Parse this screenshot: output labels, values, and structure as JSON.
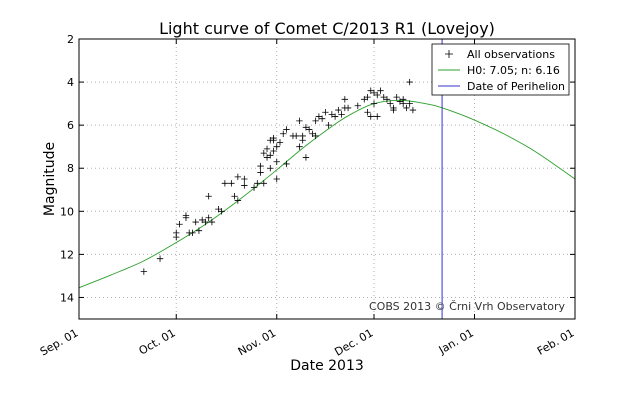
{
  "chart_data": {
    "type": "scatter",
    "title": "Light curve of Comet C/2013 R1 (Lovejoy)",
    "xlabel": "Date 2013",
    "ylabel": "Magnitude",
    "x_ticks": [
      "Sep. 01",
      "Oct. 01",
      "Nov. 01",
      "Dec. 01",
      "Jan. 01",
      "Feb. 01"
    ],
    "x_tick_dates": [
      "2013-09-01",
      "2013-10-01",
      "2013-11-01",
      "2013-12-01",
      "2014-01-01",
      "2014-02-01"
    ],
    "xlim": [
      "2013-09-01",
      "2014-02-01"
    ],
    "ylim": [
      15,
      2
    ],
    "y_inverted": true,
    "y_ticks": [
      2,
      4,
      6,
      8,
      10,
      12,
      14
    ],
    "grid": true,
    "legend_position": "top-right",
    "annotation": "COBS 2013 © Črni Vrh Observatory",
    "colors": {
      "observations": "#000000",
      "model": "#2ca02c",
      "perihelion": "#3333cc",
      "grid": "#b0b0b0"
    },
    "series": [
      {
        "name": "All observations",
        "kind": "scatter",
        "marker": "+",
        "points": [
          [
            "2013-09-21",
            12.8
          ],
          [
            "2013-09-26",
            12.2
          ],
          [
            "2013-10-01",
            11.0
          ],
          [
            "2013-10-01",
            11.2
          ],
          [
            "2013-10-02",
            10.6
          ],
          [
            "2013-10-04",
            10.3
          ],
          [
            "2013-10-04",
            10.2
          ],
          [
            "2013-10-05",
            11.0
          ],
          [
            "2013-10-06",
            11.0
          ],
          [
            "2013-10-07",
            10.5
          ],
          [
            "2013-10-08",
            10.9
          ],
          [
            "2013-10-09",
            10.4
          ],
          [
            "2013-10-10",
            10.5
          ],
          [
            "2013-10-11",
            10.3
          ],
          [
            "2013-10-11",
            9.3
          ],
          [
            "2013-10-12",
            10.5
          ],
          [
            "2013-10-14",
            9.9
          ],
          [
            "2013-10-15",
            10.0
          ],
          [
            "2013-10-16",
            8.7
          ],
          [
            "2013-10-18",
            8.7
          ],
          [
            "2013-10-19",
            9.3
          ],
          [
            "2013-10-20",
            9.5
          ],
          [
            "2013-10-20",
            8.4
          ],
          [
            "2013-10-22",
            8.8
          ],
          [
            "2013-10-22",
            8.5
          ],
          [
            "2013-10-25",
            8.9
          ],
          [
            "2013-10-26",
            8.7
          ],
          [
            "2013-10-27",
            8.2
          ],
          [
            "2013-10-27",
            7.9
          ],
          [
            "2013-10-28",
            8.7
          ],
          [
            "2013-10-28",
            7.3
          ],
          [
            "2013-10-29",
            7.5
          ],
          [
            "2013-10-29",
            7.1
          ],
          [
            "2013-10-30",
            8.0
          ],
          [
            "2013-10-30",
            7.4
          ],
          [
            "2013-10-30",
            6.7
          ],
          [
            "2013-10-31",
            7.2
          ],
          [
            "2013-10-31",
            6.7
          ],
          [
            "2013-10-31",
            6.6
          ],
          [
            "2013-11-01",
            8.5
          ],
          [
            "2013-11-01",
            7.7
          ],
          [
            "2013-11-01",
            7.0
          ],
          [
            "2013-11-02",
            6.8
          ],
          [
            "2013-11-03",
            6.4
          ],
          [
            "2013-11-04",
            7.8
          ],
          [
            "2013-11-04",
            6.2
          ],
          [
            "2013-11-06",
            6.5
          ],
          [
            "2013-11-07",
            6.5
          ],
          [
            "2013-11-08",
            7.0
          ],
          [
            "2013-11-08",
            5.8
          ],
          [
            "2013-11-09",
            6.7
          ],
          [
            "2013-11-09",
            6.5
          ],
          [
            "2013-11-10",
            7.5
          ],
          [
            "2013-11-10",
            6.1
          ],
          [
            "2013-11-11",
            6.2
          ],
          [
            "2013-11-12",
            6.4
          ],
          [
            "2013-11-13",
            6.5
          ],
          [
            "2013-11-13",
            5.8
          ],
          [
            "2013-11-14",
            5.6
          ],
          [
            "2013-11-15",
            5.7
          ],
          [
            "2013-11-16",
            5.4
          ],
          [
            "2013-11-17",
            6.0
          ],
          [
            "2013-11-18",
            5.5
          ],
          [
            "2013-11-19",
            5.6
          ],
          [
            "2013-11-20",
            5.3
          ],
          [
            "2013-11-21",
            5.5
          ],
          [
            "2013-11-22",
            5.2
          ],
          [
            "2013-11-22",
            4.8
          ],
          [
            "2013-11-23",
            5.2
          ],
          [
            "2013-11-26",
            5.1
          ],
          [
            "2013-11-28",
            4.8
          ],
          [
            "2013-11-29",
            4.7
          ],
          [
            "2013-11-29",
            5.4
          ],
          [
            "2013-11-30",
            4.4
          ],
          [
            "2013-11-30",
            5.6
          ],
          [
            "2013-12-01",
            5.0
          ],
          [
            "2013-12-01",
            4.5
          ],
          [
            "2013-12-02",
            5.6
          ],
          [
            "2013-12-02",
            4.6
          ],
          [
            "2013-12-03",
            4.4
          ],
          [
            "2013-12-04",
            4.7
          ],
          [
            "2013-12-05",
            4.8
          ],
          [
            "2013-12-06",
            5.0
          ],
          [
            "2013-12-07",
            5.3
          ],
          [
            "2013-12-07",
            5.2
          ],
          [
            "2013-12-08",
            4.7
          ],
          [
            "2013-12-09",
            4.9
          ],
          [
            "2013-12-10",
            5.0
          ],
          [
            "2013-12-10",
            4.8
          ],
          [
            "2013-12-11",
            5.2
          ],
          [
            "2013-12-12",
            5.0
          ],
          [
            "2013-12-12",
            4.0
          ],
          [
            "2013-12-13",
            5.3
          ]
        ]
      },
      {
        "name": "H0: 7.05; n: 6.16",
        "kind": "line",
        "points": [
          [
            "2013-09-01",
            13.55
          ],
          [
            "2013-09-11",
            12.95
          ],
          [
            "2013-09-21",
            12.3
          ],
          [
            "2013-10-01",
            11.45
          ],
          [
            "2013-10-11",
            10.5
          ],
          [
            "2013-10-21",
            9.4
          ],
          [
            "2013-10-31",
            8.2
          ],
          [
            "2013-11-10",
            6.95
          ],
          [
            "2013-11-20",
            5.85
          ],
          [
            "2013-11-25",
            5.4
          ],
          [
            "2013-11-30",
            5.05
          ],
          [
            "2013-12-05",
            4.88
          ],
          [
            "2013-12-10",
            4.85
          ],
          [
            "2013-12-15",
            4.95
          ],
          [
            "2013-12-20",
            5.1
          ],
          [
            "2013-12-25",
            5.35
          ],
          [
            "2013-12-31",
            5.7
          ],
          [
            "2014-01-10",
            6.4
          ],
          [
            "2014-01-20",
            7.25
          ],
          [
            "2014-02-01",
            8.5
          ]
        ]
      },
      {
        "name": "Date of Perihelion",
        "kind": "vline",
        "x": "2013-12-22"
      }
    ]
  }
}
